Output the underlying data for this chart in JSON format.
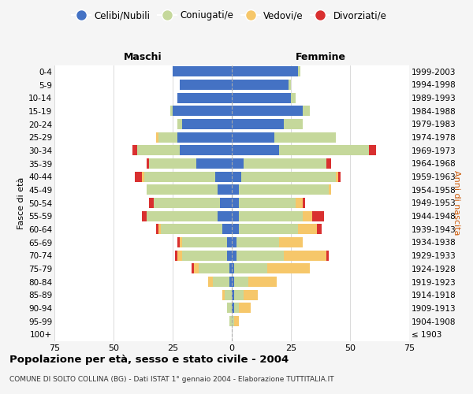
{
  "age_groups": [
    "100+",
    "95-99",
    "90-94",
    "85-89",
    "80-84",
    "75-79",
    "70-74",
    "65-69",
    "60-64",
    "55-59",
    "50-54",
    "45-49",
    "40-44",
    "35-39",
    "30-34",
    "25-29",
    "20-24",
    "15-19",
    "10-14",
    "5-9",
    "0-4"
  ],
  "birth_years": [
    "≤ 1903",
    "1904-1908",
    "1909-1913",
    "1914-1918",
    "1919-1923",
    "1924-1928",
    "1929-1933",
    "1934-1938",
    "1939-1943",
    "1944-1948",
    "1949-1953",
    "1954-1958",
    "1959-1963",
    "1964-1968",
    "1969-1973",
    "1974-1978",
    "1979-1983",
    "1984-1988",
    "1989-1993",
    "1994-1998",
    "1999-2003"
  ],
  "male": {
    "celibi": [
      0,
      0,
      0,
      0,
      1,
      1,
      2,
      2,
      4,
      6,
      5,
      6,
      7,
      15,
      22,
      23,
      21,
      25,
      23,
      22,
      25
    ],
    "coniugati": [
      0,
      1,
      2,
      3,
      7,
      13,
      19,
      19,
      26,
      30,
      28,
      30,
      30,
      20,
      18,
      8,
      2,
      1,
      0,
      0,
      0
    ],
    "vedovi": [
      0,
      0,
      0,
      1,
      2,
      2,
      2,
      1,
      1,
      0,
      0,
      0,
      1,
      0,
      0,
      1,
      0,
      0,
      0,
      0,
      0
    ],
    "divorziati": [
      0,
      0,
      0,
      0,
      0,
      1,
      1,
      1,
      1,
      2,
      2,
      0,
      3,
      1,
      2,
      0,
      0,
      0,
      0,
      0,
      0
    ]
  },
  "female": {
    "nubili": [
      0,
      0,
      1,
      1,
      1,
      1,
      2,
      2,
      3,
      3,
      3,
      3,
      4,
      5,
      20,
      18,
      22,
      30,
      25,
      24,
      28
    ],
    "coniugate": [
      0,
      1,
      2,
      4,
      6,
      14,
      20,
      18,
      25,
      27,
      24,
      38,
      40,
      35,
      38,
      26,
      8,
      3,
      2,
      1,
      1
    ],
    "vedove": [
      0,
      2,
      5,
      6,
      12,
      18,
      18,
      10,
      8,
      4,
      3,
      1,
      1,
      0,
      0,
      0,
      0,
      0,
      0,
      0,
      0
    ],
    "divorziate": [
      0,
      0,
      0,
      0,
      0,
      0,
      1,
      0,
      2,
      5,
      1,
      0,
      1,
      2,
      3,
      0,
      0,
      0,
      0,
      0,
      0
    ]
  },
  "colors": {
    "celibi": "#4472C4",
    "coniugati": "#C5D89B",
    "vedovi": "#F6C76A",
    "divorziati": "#D93030"
  },
  "xlim": 75,
  "title": "Popolazione per età, sesso e stato civile - 2004",
  "subtitle": "COMUNE DI SOLTO COLLINA (BG) - Dati ISTAT 1° gennaio 2004 - Elaborazione TUTTITALIA.IT",
  "ylabel_left": "Fasce di età",
  "ylabel_right": "Anni di nascita",
  "xlabel_male": "Maschi",
  "xlabel_female": "Femmine",
  "legend_labels": [
    "Celibi/Nubili",
    "Coniugati/e",
    "Vedovi/e",
    "Divorziati/e"
  ],
  "bg_color": "#f5f5f5",
  "plot_bg_color": "#ffffff"
}
